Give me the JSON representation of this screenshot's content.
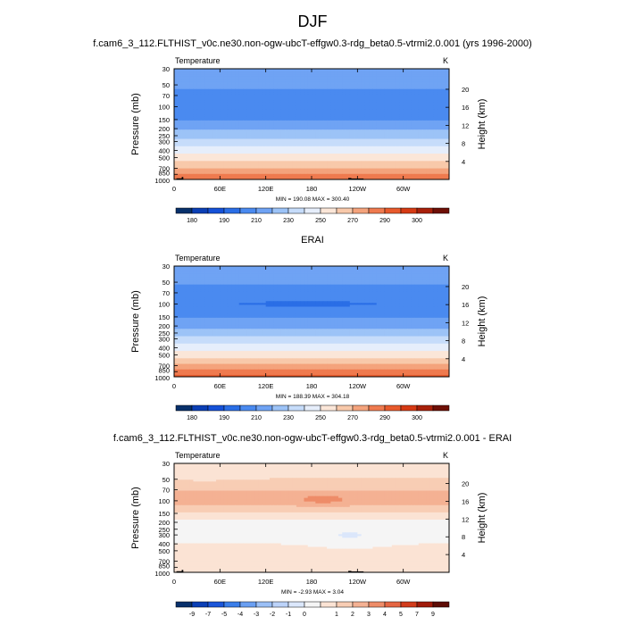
{
  "page": {
    "title": "DJF",
    "run_name": "f.cam6_3_112.FLTHIST_v0c.ne30.non-ogw-ubcT-effgw0.3-rdg_beta0.5-vtrmi2.0.001",
    "model_years": "(yrs 1996-2000)"
  },
  "colors": {
    "full_scale": [
      "#08306b",
      "#0b3fb5",
      "#1551d8",
      "#2a6ee6",
      "#4a8af0",
      "#6fa3f4",
      "#9cc3f7",
      "#c6dcfa",
      "#e6eefb",
      "#fbe6d8",
      "#f8c9aa",
      "#f4a37c",
      "#ef7a4f",
      "#e85a2c",
      "#d63a14",
      "#a8200a",
      "#6e0f06"
    ],
    "diff_scale": [
      "#08306b",
      "#0b3fb5",
      "#1b56d9",
      "#3b7ee9",
      "#6a9ff2",
      "#9bbff6",
      "#bcd3f9",
      "#dbe7fb",
      "#f5f5f5",
      "#fbe3d4",
      "#f8cdb4",
      "#f4b193",
      "#ee8c68",
      "#e56643",
      "#d23c1c",
      "#a01b0a",
      "#5e0c05"
    ],
    "terrain": "#000000"
  },
  "chart_data": [
    {
      "type": "heatmap",
      "id": "model",
      "title": "f.cam6_3_112.FLTHIST_v0c.ne30.non-ogw-ubcT-effgw0.3-rdg_beta0.5-vtrmi2.0.001 (yrs 1996-2000)",
      "left_label": "Temperature",
      "right_label": "K",
      "xlabel": "",
      "ylabel": "Pressure (mb)",
      "y2label": "Height (km)",
      "x_ticks": [
        "0",
        "60E",
        "120E",
        "180",
        "120W",
        "60W"
      ],
      "x_range_deg": [
        0,
        360
      ],
      "x_tick_values": [
        0,
        60,
        120,
        180,
        240,
        300
      ],
      "y_ticks": [
        "30",
        "50",
        "70",
        "100",
        "150",
        "200",
        "250",
        "300",
        "400",
        "500",
        "700",
        "850",
        "1000"
      ],
      "y_tick_values": [
        30,
        50,
        70,
        100,
        150,
        200,
        250,
        300,
        400,
        500,
        700,
        850,
        1000
      ],
      "y_range_mb": [
        30,
        1000
      ],
      "y2_ticks": [
        "4",
        "8",
        "12",
        "16",
        "20"
      ],
      "y2_tick_values_km": [
        4,
        8,
        12,
        16,
        20
      ],
      "stats_text": "MIN = 190.08   MAX = 300.40",
      "min": 190.08,
      "max": 300.4,
      "profile": [
        {
          "p": 30,
          "v": 215
        },
        {
          "p": 50,
          "v": 212
        },
        {
          "p": 70,
          "v": 207
        },
        {
          "p": 100,
          "v": 201
        },
        {
          "p": 150,
          "v": 210
        },
        {
          "p": 200,
          "v": 218
        },
        {
          "p": 250,
          "v": 226
        },
        {
          "p": 300,
          "v": 233
        },
        {
          "p": 400,
          "v": 246
        },
        {
          "p": 500,
          "v": 256
        },
        {
          "p": 700,
          "v": 271
        },
        {
          "p": 850,
          "v": 281
        },
        {
          "p": 1000,
          "v": 289
        }
      ],
      "features": [],
      "terrain": [
        {
          "lon0": 3,
          "lon1": 12,
          "p": 965
        },
        {
          "lon0": 10,
          "lon1": 12,
          "p": 925
        },
        {
          "lon0": 228,
          "lon1": 232,
          "p": 955
        },
        {
          "lon0": 232,
          "lon1": 248,
          "p": 970
        }
      ],
      "colorbar": {
        "levels": [
          180,
          185,
          190,
          200,
          210,
          220,
          230,
          240,
          250,
          260,
          270,
          280,
          290,
          295,
          300
        ],
        "labels": [
          "180",
          "190",
          "210",
          "230",
          "250",
          "270",
          "290",
          "300"
        ]
      }
    },
    {
      "type": "heatmap",
      "id": "obs",
      "title": "ERAI",
      "left_label": "Temperature",
      "right_label": "K",
      "xlabel": "",
      "ylabel": "Pressure (mb)",
      "y2label": "Height (km)",
      "x_ticks": [
        "0",
        "60E",
        "120E",
        "180",
        "120W",
        "60W"
      ],
      "x_range_deg": [
        0,
        360
      ],
      "x_tick_values": [
        0,
        60,
        120,
        180,
        240,
        300
      ],
      "y_ticks": [
        "30",
        "50",
        "70",
        "100",
        "150",
        "200",
        "250",
        "300",
        "400",
        "500",
        "700",
        "850",
        "1000"
      ],
      "y_tick_values": [
        30,
        50,
        70,
        100,
        150,
        200,
        250,
        300,
        400,
        500,
        700,
        850,
        1000
      ],
      "y_range_mb": [
        30,
        1000
      ],
      "y2_ticks": [
        "4",
        "8",
        "12",
        "16",
        "20"
      ],
      "y2_tick_values_km": [
        4,
        8,
        12,
        16,
        20
      ],
      "stats_text": "MIN = 188.39   MAX = 304.18",
      "min": 188.39,
      "max": 304.18,
      "profile": [
        {
          "p": 30,
          "v": 214
        },
        {
          "p": 50,
          "v": 211
        },
        {
          "p": 70,
          "v": 205
        },
        {
          "p": 100,
          "v": 200
        },
        {
          "p": 150,
          "v": 209
        },
        {
          "p": 200,
          "v": 217
        },
        {
          "p": 250,
          "v": 226
        },
        {
          "p": 300,
          "v": 233
        },
        {
          "p": 400,
          "v": 246
        },
        {
          "p": 500,
          "v": 256
        },
        {
          "p": 700,
          "v": 272
        },
        {
          "p": 850,
          "v": 283
        },
        {
          "p": 1000,
          "v": 292
        }
      ],
      "features": [
        {
          "lon": 175,
          "p": 100,
          "dlon": 40,
          "dlogp": 0.04,
          "v": 190
        }
      ],
      "terrain": [],
      "colorbar": {
        "levels": [
          180,
          185,
          190,
          200,
          210,
          220,
          230,
          240,
          250,
          260,
          270,
          280,
          290,
          295,
          300
        ],
        "labels": [
          "180",
          "190",
          "210",
          "230",
          "250",
          "270",
          "290",
          "300"
        ]
      }
    },
    {
      "type": "heatmap",
      "id": "diff",
      "title": "f.cam6_3_112.FLTHIST_v0c.ne30.non-ogw-ubcT-effgw0.3-rdg_beta0.5-vtrmi2.0.001 - ERAI",
      "left_label": "Temperature",
      "right_label": "K",
      "xlabel": "",
      "ylabel": "Pressure (mb)",
      "y2label": "Height (km)",
      "x_ticks": [
        "0",
        "60E",
        "120E",
        "180",
        "120W",
        "60W"
      ],
      "x_range_deg": [
        0,
        360
      ],
      "x_tick_values": [
        0,
        60,
        120,
        180,
        240,
        300
      ],
      "y_ticks": [
        "30",
        "50",
        "70",
        "100",
        "150",
        "200",
        "250",
        "300",
        "400",
        "500",
        "700",
        "850",
        "1000"
      ],
      "y_tick_values": [
        30,
        50,
        70,
        100,
        150,
        200,
        250,
        300,
        400,
        500,
        700,
        850,
        1000
      ],
      "y_range_mb": [
        30,
        1000
      ],
      "y2_ticks": [
        "4",
        "8",
        "12",
        "16",
        "20"
      ],
      "y2_tick_values_km": [
        4,
        8,
        12,
        16,
        20
      ],
      "stats_text": "MIN = -2.93   MAX =  3.04",
      "min": -2.93,
      "max": 3.04,
      "profile": [
        {
          "p": 30,
          "v": -0.2
        },
        {
          "p": 40,
          "v": -0.5
        },
        {
          "p": 55,
          "v": 0.3
        },
        {
          "p": 80,
          "v": 1.2
        },
        {
          "p": 100,
          "v": 1.5
        },
        {
          "p": 130,
          "v": 0.6
        },
        {
          "p": 160,
          "v": -0.4
        },
        {
          "p": 200,
          "v": -1.4
        },
        {
          "p": 300,
          "v": -1.3
        },
        {
          "p": 400,
          "v": -1.0
        },
        {
          "p": 550,
          "v": -0.8
        },
        {
          "p": 700,
          "v": -0.4
        },
        {
          "p": 850,
          "v": -0.8
        },
        {
          "p": 1000,
          "v": -0.9
        }
      ],
      "features": [
        {
          "lon": 195,
          "p": 95,
          "dlon": 35,
          "dlogp": 0.08,
          "v": 1.0
        },
        {
          "lon": 230,
          "p": 310,
          "dlon": 45,
          "dlogp": 0.12,
          "v": -0.8
        },
        {
          "lon": 40,
          "p": 45,
          "dlon": 50,
          "dlogp": 0.06,
          "v": -0.6
        }
      ],
      "terrain": [
        {
          "lon0": 3,
          "lon1": 12,
          "p": 965
        },
        {
          "lon0": 10,
          "lon1": 12,
          "p": 925
        },
        {
          "lon0": 228,
          "lon1": 232,
          "p": 955
        },
        {
          "lon0": 232,
          "lon1": 248,
          "p": 970
        }
      ],
      "colorbar": {
        "levels": [
          -9,
          -8,
          -7,
          -6,
          -5,
          -4,
          -3,
          -2,
          -1,
          0,
          1,
          2,
          3,
          4,
          5,
          7,
          9
        ],
        "labels": [
          "-9",
          "-7",
          "-5",
          "-4",
          "-3",
          "-2",
          "-1",
          "0",
          "1",
          "2",
          "3",
          "4",
          "5",
          "7",
          "9"
        ]
      }
    }
  ]
}
